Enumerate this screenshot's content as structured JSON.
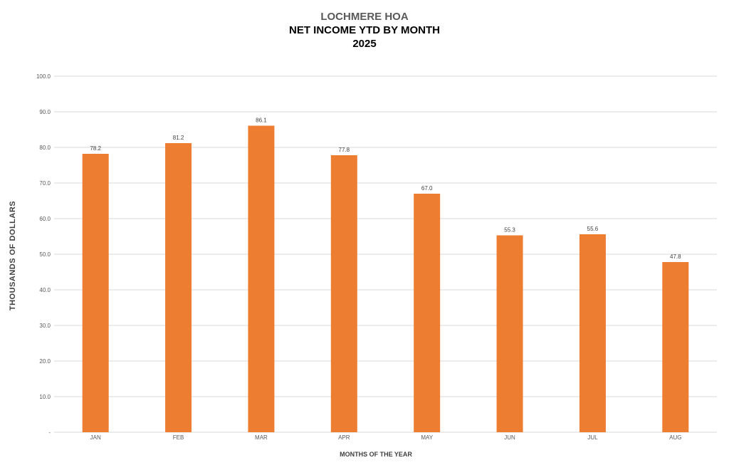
{
  "chart_data": {
    "type": "bar",
    "title": "LOCHMERE HOA",
    "subtitle": "NET INCOME YTD BY MONTH",
    "subtitle2": "2025",
    "xlabel": "MONTHS OF THE YEAR",
    "ylabel": "THOUSANDS OF DOLLARS",
    "categories": [
      "JAN",
      "FEB",
      "MAR",
      "APR",
      "MAY",
      "JUN",
      "JUL",
      "AUG"
    ],
    "values": [
      78.2,
      81.2,
      86.1,
      77.8,
      67.0,
      55.3,
      55.6,
      47.8
    ],
    "data_labels": [
      "78.2",
      "81.2",
      "86.1",
      "77.8",
      "67.0",
      "55.3",
      "55.6",
      "47.8"
    ],
    "ylim": [
      0,
      100
    ],
    "yticks": [
      0,
      10,
      20,
      30,
      40,
      50,
      60,
      70,
      80,
      90,
      100
    ],
    "ytick_labels": [
      "-",
      "10.0",
      "20.0",
      "30.0",
      "40.0",
      "50.0",
      "60.0",
      "70.0",
      "80.0",
      "90.0",
      "100.0"
    ],
    "grid": true,
    "legend": "none",
    "bar_color": "#ED7D31",
    "grid_color": "#D9D9D9"
  }
}
